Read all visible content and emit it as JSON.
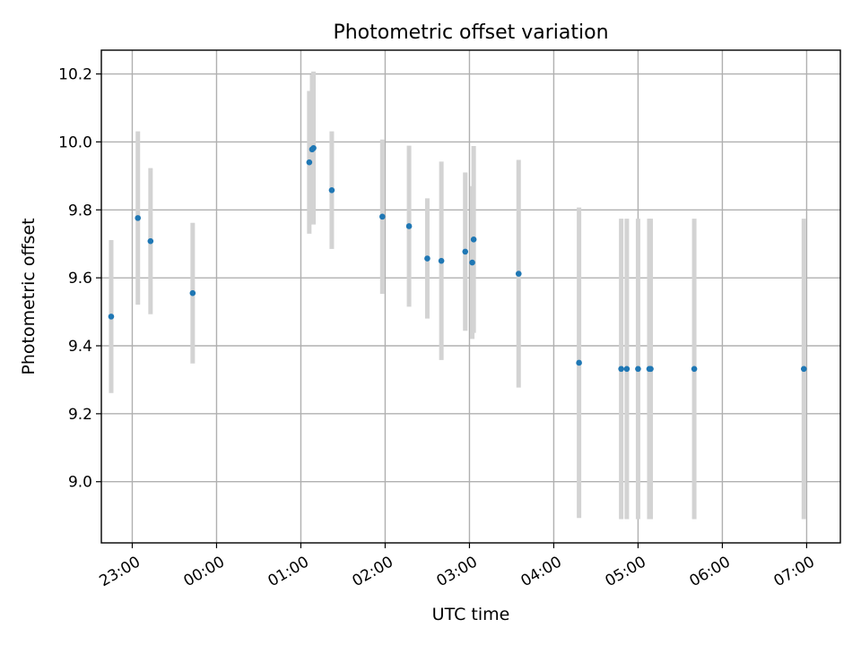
{
  "chart_data": {
    "type": "scatter",
    "title": "Photometric offset variation",
    "xlabel": "UTC time",
    "ylabel": "Photometric offset",
    "x_axis_type": "time",
    "x_tick_labels": [
      "23:00",
      "00:00",
      "01:00",
      "02:00",
      "03:00",
      "04:00",
      "05:00",
      "06:00",
      "07:00"
    ],
    "y_tick_labels": [
      "9.0",
      "9.2",
      "9.4",
      "9.6",
      "9.8",
      "10.0",
      "10.2"
    ],
    "xlim": [
      "22:38",
      "07:24"
    ],
    "ylim": [
      8.82,
      10.27
    ],
    "grid": true,
    "marker_color": "#1f77b4",
    "errorbar_color": "#d3d3d3",
    "series": [
      {
        "points": [
          {
            "x": "22:45",
            "y": 9.486,
            "err": 0.225
          },
          {
            "x": "23:04",
            "y": 9.776,
            "err": 0.255
          },
          {
            "x": "23:13",
            "y": 9.708,
            "err": 0.215
          },
          {
            "x": "23:43",
            "y": 9.555,
            "err": 0.207
          },
          {
            "x": "01:06",
            "y": 9.94,
            "err": 0.21
          },
          {
            "x": "01:08",
            "y": 9.978,
            "err": 0.22
          },
          {
            "x": "01:09",
            "y": 9.982,
            "err": 0.225
          },
          {
            "x": "01:22",
            "y": 9.858,
            "err": 0.173
          },
          {
            "x": "01:58",
            "y": 9.78,
            "err": 0.227
          },
          {
            "x": "02:17",
            "y": 9.752,
            "err": 0.237
          },
          {
            "x": "02:30",
            "y": 9.657,
            "err": 0.177
          },
          {
            "x": "02:40",
            "y": 9.65,
            "err": 0.292
          },
          {
            "x": "02:57",
            "y": 9.677,
            "err": 0.233
          },
          {
            "x": "03:02",
            "y": 9.645,
            "err": 0.225
          },
          {
            "x": "03:03",
            "y": 9.713,
            "err": 0.275
          },
          {
            "x": "03:35",
            "y": 9.612,
            "err": 0.335
          },
          {
            "x": "04:18",
            "y": 9.35,
            "err": 0.457
          },
          {
            "x": "04:48",
            "y": 9.332,
            "err": 0.442
          },
          {
            "x": "04:52",
            "y": 9.332,
            "err": 0.442
          },
          {
            "x": "05:00",
            "y": 9.332,
            "err": 0.442
          },
          {
            "x": "05:08",
            "y": 9.332,
            "err": 0.442
          },
          {
            "x": "05:09",
            "y": 9.332,
            "err": 0.442
          },
          {
            "x": "05:40",
            "y": 9.332,
            "err": 0.442
          },
          {
            "x": "06:58",
            "y": 9.332,
            "err": 0.442
          }
        ]
      }
    ]
  }
}
